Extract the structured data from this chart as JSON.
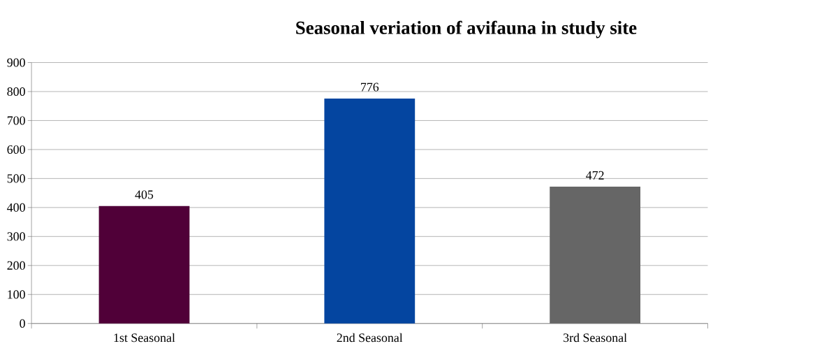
{
  "chart_data": {
    "type": "bar",
    "title": "Seasonal veriation of avifauna in study site",
    "categories": [
      "1st Seasonal",
      "2nd Seasonal",
      "3rd Seasonal"
    ],
    "values": [
      405,
      776,
      472
    ],
    "colors": [
      "#500038",
      "#0445a0",
      "#666666"
    ],
    "ylim": [
      0,
      900
    ],
    "yticks": [
      0,
      100,
      200,
      300,
      400,
      500,
      600,
      700,
      800,
      900
    ],
    "grid": "y",
    "data_labels": true
  }
}
